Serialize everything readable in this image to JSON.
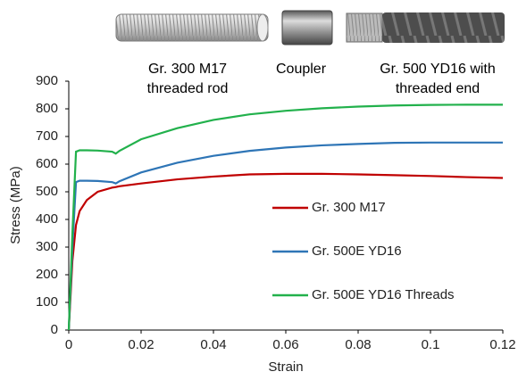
{
  "chart_data": {
    "type": "line",
    "annotations": [
      "Gr. 300 M17",
      "threaded rod",
      "Coupler",
      "Gr. 500 YD16 with",
      "threaded end"
    ],
    "x_label": "Strain",
    "y_label": "Stress (MPa)",
    "x": [
      0,
      0.001,
      0.002,
      0.003,
      0.005,
      0.008,
      0.012,
      0.013,
      0.014,
      0.02,
      0.03,
      0.04,
      0.05,
      0.06,
      0.07,
      0.08,
      0.09,
      0.1,
      0.11,
      0.12
    ],
    "series": [
      {
        "name": "Gr. 300 M17",
        "color": "#c00000",
        "values": [
          0,
          250,
          380,
          430,
          470,
          500,
          515,
          517,
          520,
          530,
          545,
          555,
          563,
          565,
          565,
          563,
          560,
          557,
          553,
          550
        ]
      },
      {
        "name": "Gr. 500E YD16",
        "color": "#2e75b6",
        "values": [
          0,
          300,
          535,
          540,
          540,
          539,
          535,
          530,
          538,
          570,
          605,
          630,
          648,
          660,
          668,
          673,
          677,
          678,
          678,
          678
        ]
      },
      {
        "name": "Gr. 500E YD16 Threads",
        "color": "#22b14c",
        "values": [
          0,
          350,
          645,
          650,
          650,
          649,
          645,
          638,
          648,
          690,
          730,
          760,
          780,
          793,
          802,
          808,
          812,
          814,
          815,
          815
        ]
      }
    ],
    "xlim": [
      0,
      0.12
    ],
    "xticks": [
      0,
      0.02,
      0.04,
      0.06,
      0.08,
      0.1,
      0.12
    ],
    "ylim": [
      0,
      900
    ],
    "yticks": [
      0,
      100,
      200,
      300,
      400,
      500,
      600,
      700,
      800,
      900
    ],
    "grid": false,
    "legend": "right"
  }
}
